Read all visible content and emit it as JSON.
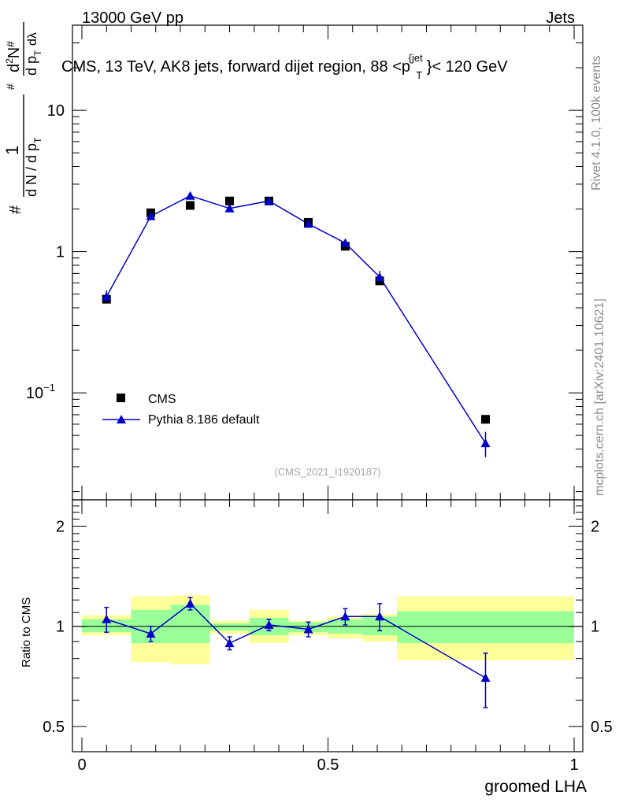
{
  "header": {
    "left": "13000 GeV pp",
    "right": "Jets"
  },
  "title": "CMS, 13 TeV, AK8 jets, forward dijet region, 88 <p",
  "title_sup": "{jet",
  "title_sub": "T",
  "title_tail": "}< 120 GeV",
  "side": {
    "rivet": "Rivet 4.1.0,  100k events",
    "mcplots": "mcplots.cern.ch [arXiv:2401.10621]"
  },
  "watermark": "(CMS_2021_I1920187)",
  "ylabel_top": {
    "hash": "#",
    "one": "1",
    "denom_a": "d N / d p",
    "denom_sub": "T",
    "numer": "d",
    "numer_sup": "2",
    "numer_tail": "N",
    "denom_b": "d p",
    "denom_b_sub": "T",
    "denom_c": "dλ"
  },
  "xlabel": "groomed LHA",
  "ylabel_bottom": "Ratio to CMS",
  "legend": {
    "cms": "CMS",
    "pythia": "Pythia 8.186 default"
  },
  "ticks": {
    "top_y": [
      {
        "v": 10,
        "label": "10"
      },
      {
        "v": 1,
        "label": "1"
      },
      {
        "v": 0.1,
        "label": "10",
        "exp": "−1"
      }
    ],
    "ratio_y": [
      {
        "v": 2,
        "label": "2"
      },
      {
        "v": 1,
        "label": "1"
      },
      {
        "v": 0.5,
        "label": "0.5"
      }
    ],
    "x": [
      {
        "v": 0,
        "label": "0"
      },
      {
        "v": 0.5,
        "label": "0.5"
      },
      {
        "v": 1,
        "label": "1"
      }
    ]
  },
  "chart_data": {
    "type": "scatter",
    "title": "CMS, 13 TeV, AK8 jets, forward dijet region, 88 < pT jet < 120 GeV",
    "xlabel": "groomed LHA",
    "ylabel": "1/(dN/dpT) d2N/(dpT dlambda)",
    "xlim": [
      0,
      1
    ],
    "ylim": [
      0.0175,
      40
    ],
    "yscale": "log",
    "bins": [
      [
        0.0,
        0.1
      ],
      [
        0.1,
        0.18
      ],
      [
        0.18,
        0.26
      ],
      [
        0.26,
        0.34
      ],
      [
        0.34,
        0.42
      ],
      [
        0.42,
        0.5
      ],
      [
        0.5,
        0.57
      ],
      [
        0.57,
        0.64
      ],
      [
        0.64,
        1.0
      ]
    ],
    "series": [
      {
        "name": "CMS",
        "marker": "square",
        "color": "#000000",
        "x": [
          0.05,
          0.14,
          0.22,
          0.3,
          0.38,
          0.46,
          0.535,
          0.605,
          0.82
        ],
        "y": [
          0.46,
          1.88,
          2.12,
          2.28,
          2.28,
          1.61,
          1.09,
          0.62,
          0.065
        ]
      },
      {
        "name": "Pythia 8.186 default",
        "marker": "triangle",
        "color": "#0000cc",
        "x": [
          0.05,
          0.14,
          0.22,
          0.3,
          0.38,
          0.46,
          0.535,
          0.605,
          0.82
        ],
        "y": [
          0.48,
          1.78,
          2.48,
          2.02,
          2.28,
          1.57,
          1.15,
          0.66,
          0.044
        ],
        "yerr": [
          0.05,
          0.08,
          0.1,
          0.08,
          0.09,
          0.07,
          0.08,
          0.07,
          0.009
        ]
      }
    ],
    "ratio": {
      "ylabel": "Ratio to CMS",
      "ylim": [
        0.42,
        2.4
      ],
      "yscale": "log",
      "values": [
        1.05,
        0.95,
        1.17,
        0.89,
        1.01,
        0.98,
        1.07,
        1.07,
        0.7
      ],
      "errors": [
        0.09,
        0.05,
        0.05,
        0.04,
        0.04,
        0.05,
        0.06,
        0.1,
        0.13
      ],
      "band_inner": [
        [
          0.96,
          1.05
        ],
        [
          0.89,
          1.12
        ],
        [
          0.89,
          1.16
        ],
        [
          0.97,
          1.02
        ],
        [
          0.94,
          1.06
        ],
        [
          0.96,
          1.03
        ],
        [
          0.95,
          1.05
        ],
        [
          0.94,
          1.07
        ],
        [
          0.89,
          1.11
        ]
      ],
      "band_outer": [
        [
          0.94,
          1.08
        ],
        [
          0.78,
          1.23
        ],
        [
          0.77,
          1.24
        ],
        [
          0.95,
          1.04
        ],
        [
          0.89,
          1.12
        ],
        [
          0.94,
          1.04
        ],
        [
          0.92,
          1.07
        ],
        [
          0.9,
          1.09
        ],
        [
          0.79,
          1.23
        ]
      ]
    },
    "colors": {
      "band_inner": "#99ff99",
      "band_outer": "#ffff99",
      "mc": "#0000cc",
      "data": "#000000"
    }
  }
}
